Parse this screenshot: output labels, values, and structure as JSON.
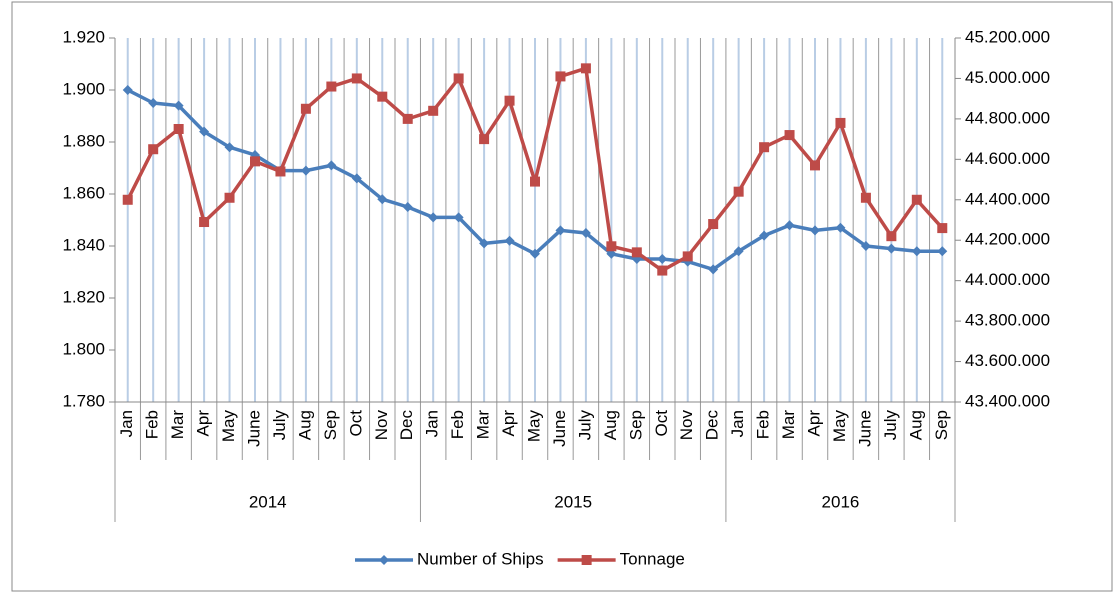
{
  "chart_data": {
    "type": "line",
    "categories": [
      "Jan",
      "Feb",
      "Mar",
      "Apr",
      "May",
      "June",
      "July",
      "Aug",
      "Sep",
      "Oct",
      "Nov",
      "Dec",
      "Jan",
      "Feb",
      "Mar",
      "Apr",
      "May",
      "June",
      "July",
      "Aug",
      "Sep",
      "Oct",
      "Nov",
      "Dec",
      "Jan",
      "Feb",
      "Mar",
      "Apr",
      "May",
      "June",
      "July",
      "Aug",
      "Sep"
    ],
    "groups": [
      "2014",
      "2015",
      "2016"
    ],
    "series": [
      {
        "name": "Number of Ships",
        "color": "#4a7ebb",
        "marker": "diamond",
        "values": [
          1.9,
          1.895,
          1.894,
          1.884,
          1.878,
          1.875,
          1.869,
          1.869,
          1.871,
          1.866,
          1.858,
          1.855,
          1.851,
          1.851,
          1.841,
          1.842,
          1.837,
          1.846,
          1.845,
          1.837,
          1.835,
          1.835,
          1.834,
          1.831,
          1.838,
          1.844,
          1.848,
          1.846,
          1.847,
          1.84,
          1.839,
          1.838,
          1.838
        ]
      },
      {
        "name": "Tonnage",
        "color": "#be4b48",
        "marker": "square",
        "axis": "y2",
        "values": [
          44400000,
          44650000,
          44750000,
          44290000,
          44410000,
          44590000,
          44540000,
          44850000,
          44960000,
          45000000,
          44910000,
          44800000,
          44840000,
          45000000,
          44700000,
          44890000,
          44490000,
          45010000,
          45050000,
          44170000,
          44140000,
          44050000,
          44120000,
          44280000,
          44440000,
          44660000,
          44720000,
          44570000,
          44780000,
          44410000,
          44220000,
          44400000,
          44260000
        ]
      }
    ],
    "ylim": [
      1.78,
      1.92
    ],
    "yticks": [
      {
        "value": 1.78,
        "label": "1.780"
      },
      {
        "value": 1.8,
        "label": "1.800"
      },
      {
        "value": 1.82,
        "label": "1.820"
      },
      {
        "value": 1.84,
        "label": "1.840"
      },
      {
        "value": 1.86,
        "label": "1.860"
      },
      {
        "value": 1.88,
        "label": "1.880"
      },
      {
        "value": 1.9,
        "label": "1.900"
      },
      {
        "value": 1.92,
        "label": "1.920"
      }
    ],
    "y2lim": [
      43400000,
      45200000
    ],
    "y2ticks": [
      {
        "value": 43400000,
        "label": "43.400.000"
      },
      {
        "value": 43600000,
        "label": "43.600.000"
      },
      {
        "value": 43800000,
        "label": "43.800.000"
      },
      {
        "value": 44000000,
        "label": "44.000.000"
      },
      {
        "value": 44200000,
        "label": "44.200.000"
      },
      {
        "value": 44400000,
        "label": "44.400.000"
      },
      {
        "value": 44600000,
        "label": "44.600.000"
      },
      {
        "value": 44800000,
        "label": "44.800.000"
      },
      {
        "value": 45000000,
        "label": "45.000.000"
      },
      {
        "value": 45200000,
        "label": "45.200.000"
      }
    ],
    "grid": "x",
    "legend": "bottom"
  }
}
